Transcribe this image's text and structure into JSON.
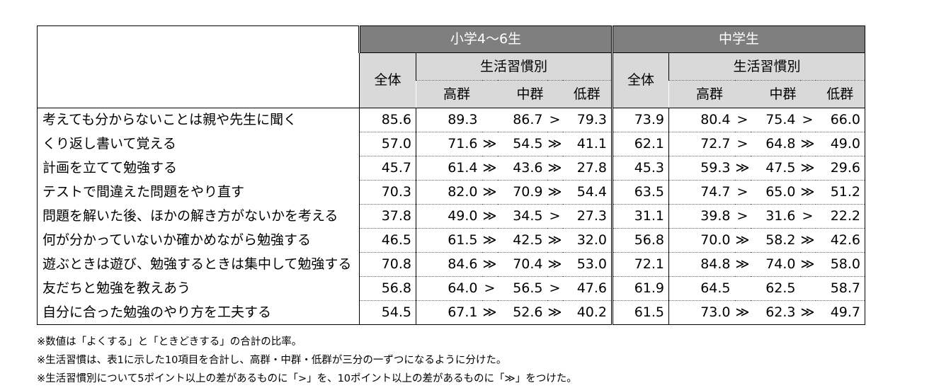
{
  "table": {
    "group_elementary": "小学4～6生",
    "group_junior": "中学生",
    "col_all": "全体",
    "col_habit": "生活習慣別",
    "col_high": "高群",
    "col_mid": "中群",
    "col_low": "低群",
    "rows": [
      {
        "label": "考えても分からないことは親や先生に聞く",
        "e_all": "85.6",
        "e_high": "89.3",
        "e_c1": "",
        "e_mid": "86.7",
        "e_c2": ">",
        "e_low": "79.3",
        "j_all": "73.9",
        "j_high": "80.4",
        "j_c1": ">",
        "j_mid": "75.4",
        "j_c2": ">",
        "j_low": "66.0"
      },
      {
        "label": "くり返し書いて覚える",
        "e_all": "57.0",
        "e_high": "71.6",
        "e_c1": "≫",
        "e_mid": "54.5",
        "e_c2": "≫",
        "e_low": "41.1",
        "j_all": "62.1",
        "j_high": "72.7",
        "j_c1": ">",
        "j_mid": "64.8",
        "j_c2": "≫",
        "j_low": "49.0"
      },
      {
        "label": "計画を立てて勉強する",
        "e_all": "45.7",
        "e_high": "61.4",
        "e_c1": "≫",
        "e_mid": "43.6",
        "e_c2": "≫",
        "e_low": "27.8",
        "j_all": "45.3",
        "j_high": "59.3",
        "j_c1": "≫",
        "j_mid": "47.5",
        "j_c2": "≫",
        "j_low": "29.6"
      },
      {
        "label": "テストで間違えた問題をやり直す",
        "e_all": "70.3",
        "e_high": "82.0",
        "e_c1": "≫",
        "e_mid": "70.9",
        "e_c2": "≫",
        "e_low": "54.4",
        "j_all": "63.5",
        "j_high": "74.7",
        "j_c1": ">",
        "j_mid": "65.0",
        "j_c2": "≫",
        "j_low": "51.2"
      },
      {
        "label": "問題を解いた後、ほかの解き方がないかを考える",
        "e_all": "37.8",
        "e_high": "49.0",
        "e_c1": "≫",
        "e_mid": "34.5",
        "e_c2": ">",
        "e_low": "27.3",
        "j_all": "31.1",
        "j_high": "39.8",
        "j_c1": ">",
        "j_mid": "31.6",
        "j_c2": ">",
        "j_low": "22.2"
      },
      {
        "label": "何が分かっていないか確かめながら勉強する",
        "e_all": "46.5",
        "e_high": "61.5",
        "e_c1": "≫",
        "e_mid": "42.5",
        "e_c2": "≫",
        "e_low": "32.0",
        "j_all": "56.8",
        "j_high": "70.0",
        "j_c1": "≫",
        "j_mid": "58.2",
        "j_c2": "≫",
        "j_low": "42.6"
      },
      {
        "label": "遊ぶときは遊び、勉強するときは集中して勉強する",
        "e_all": "70.8",
        "e_high": "84.6",
        "e_c1": "≫",
        "e_mid": "70.4",
        "e_c2": "≫",
        "e_low": "53.0",
        "j_all": "72.1",
        "j_high": "84.8",
        "j_c1": "≫",
        "j_mid": "74.0",
        "j_c2": "≫",
        "j_low": "58.0"
      },
      {
        "label": "友だちと勉強を教えあう",
        "e_all": "56.8",
        "e_high": "64.0",
        "e_c1": ">",
        "e_mid": "56.5",
        "e_c2": ">",
        "e_low": "47.6",
        "j_all": "61.9",
        "j_high": "64.5",
        "j_c1": "",
        "j_mid": "62.5",
        "j_c2": "",
        "j_low": "58.7"
      },
      {
        "label": "自分に合った勉強のやり方を工夫する",
        "e_all": "54.5",
        "e_high": "67.1",
        "e_c1": "≫",
        "e_mid": "52.6",
        "e_c2": "≫",
        "e_low": "40.2",
        "j_all": "61.5",
        "j_high": "73.0",
        "j_c1": "≫",
        "j_mid": "62.3",
        "j_c2": "≫",
        "j_low": "49.7"
      }
    ]
  },
  "notes": [
    "※数値は「よくする」と「ときどきする」の合計の比率。",
    "※生活習慣は、表1に示した10項目を合計し、高群・中群・低群が三分の一ずつになるように分けた。",
    "※生活習慣別について5ポイント以上の差があるものに「>」を、10ポイント以上の差があるものに「≫」をつけた。"
  ]
}
